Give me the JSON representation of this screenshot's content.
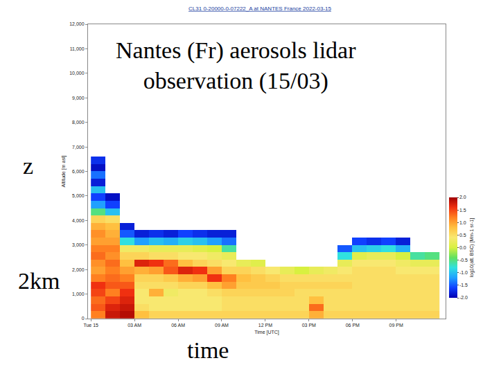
{
  "chart_data": {
    "type": "heatmap",
    "title": "CL31 0-20000-0-07222_A at NANTES France 2022-03-15",
    "annotations": [
      "Nantes (Fr) aerosols lidar observation (15/03)",
      "z",
      "2km",
      "time"
    ],
    "x_label": "Time [UTC]",
    "y_label": "Altitude [m asl]",
    "xlim": [
      -0.2,
      24.4
    ],
    "xticks": [
      {
        "value": 0,
        "label": "Tue 15"
      },
      {
        "value": 3,
        "label": "03 AM"
      },
      {
        "value": 6,
        "label": "06 AM"
      },
      {
        "value": 9,
        "label": "09 AM"
      },
      {
        "value": 12,
        "label": "12 PM"
      },
      {
        "value": 15,
        "label": "03 PM"
      },
      {
        "value": 18,
        "label": "06 PM"
      },
      {
        "value": 21,
        "label": "09 PM"
      }
    ],
    "ylim": [
      0,
      12000
    ],
    "yticks": [
      0,
      {
        "value": 1000,
        "label": "1,000"
      },
      {
        "value": 2000,
        "label": "2,000"
      },
      {
        "value": 3000,
        "label": "3,000"
      },
      {
        "value": 4000,
        "label": "4,000"
      },
      {
        "value": 5000,
        "label": "5,000"
      },
      {
        "value": 6000,
        "label": "6,000"
      },
      {
        "value": 7000,
        "label": "7,000"
      },
      {
        "value": 8000,
        "label": "8,000"
      },
      {
        "value": 9000,
        "label": "9,000"
      },
      {
        "value": 10000,
        "label": "10,000"
      },
      {
        "value": 11000,
        "label": "11,000"
      },
      {
        "value": 12000,
        "label": "12,000"
      }
    ],
    "grid": false,
    "x": [
      0.5,
      1.5,
      2.5,
      3.5,
      4.5,
      5.5,
      6.5,
      7.5,
      8.5,
      9.5,
      10.5,
      11.5,
      12.5,
      13.5,
      14.5,
      15.5,
      16.5,
      17.5,
      18.5,
      19.5,
      20.5,
      21.5,
      22.5,
      23.5
    ],
    "y": [
      150,
      450,
      750,
      1050,
      1350,
      1650,
      1950,
      2250,
      2550,
      2850,
      3150,
      3450,
      3750,
      4050,
      4350,
      4650,
      4950,
      5250,
      5550,
      5850,
      6150,
      6450,
      6750,
      7050,
      7350,
      7650
    ],
    "profiles": [
      [
        1.2,
        1.4,
        1.3,
        1.5,
        1.6,
        1.2,
        1.0,
        1.1,
        1.3,
        1.2,
        1.0,
        1.1,
        0.9,
        0.6,
        -0.5,
        -1.2,
        -1.6,
        -1.0,
        -1.8,
        -1.4,
        -1.9,
        -1.7,
        null,
        null,
        null,
        null
      ],
      [
        1.8,
        1.7,
        1.5,
        1.2,
        1.4,
        1.3,
        1.2,
        1.3,
        1.1,
        1.2,
        1.0,
        0.9,
        0.8,
        0.5,
        -1.0,
        -1.6,
        -1.9,
        null,
        null,
        null,
        null,
        null,
        null,
        null,
        null,
        null
      ],
      [
        1.9,
        1.8,
        1.7,
        1.6,
        1.4,
        1.2,
        1.0,
        0.8,
        0.6,
        0.3,
        -0.8,
        -1.5,
        -1.8,
        null,
        null,
        null,
        null,
        null,
        null,
        null,
        null,
        null,
        null,
        null,
        null,
        null
      ],
      [
        0.8,
        0.5,
        0.4,
        0.4,
        0.5,
        0.6,
        0.9,
        1.7,
        0.6,
        0.3,
        -1.2,
        -1.8,
        null,
        null,
        null,
        null,
        null,
        null,
        null,
        null,
        null,
        null,
        null,
        null,
        null,
        null
      ],
      [
        0.6,
        0.4,
        0.4,
        0.9,
        0.5,
        0.6,
        1.0,
        1.6,
        0.5,
        0.2,
        -1.0,
        -1.7,
        null,
        null,
        null,
        null,
        null,
        null,
        null,
        null,
        null,
        null,
        null,
        null,
        null,
        null
      ],
      [
        0.6,
        0.4,
        0.4,
        0.3,
        0.5,
        0.7,
        1.4,
        1.3,
        0.5,
        0.2,
        -1.1,
        -1.8,
        null,
        null,
        null,
        null,
        null,
        null,
        null,
        null,
        null,
        null,
        null,
        null,
        null,
        null
      ],
      [
        0.6,
        0.4,
        0.4,
        0.4,
        0.6,
        0.9,
        1.7,
        0.8,
        0.4,
        0.2,
        -0.9,
        -1.6,
        null,
        null,
        null,
        null,
        null,
        null,
        null,
        null,
        null,
        null,
        null,
        null,
        null,
        null
      ],
      [
        0.6,
        0.4,
        0.4,
        0.4,
        0.6,
        1.0,
        1.6,
        0.6,
        0.4,
        0.1,
        -1.0,
        -1.7,
        null,
        null,
        null,
        null,
        null,
        null,
        null,
        null,
        null,
        null,
        null,
        null,
        null,
        null
      ],
      [
        0.6,
        0.4,
        0.4,
        0.5,
        0.8,
        1.6,
        1.0,
        0.5,
        0.3,
        0.0,
        -1.2,
        -1.8,
        null,
        null,
        null,
        null,
        null,
        null,
        null,
        null,
        null,
        null,
        null,
        null,
        null,
        null
      ],
      [
        0.6,
        0.5,
        0.5,
        0.6,
        1.0,
        1.2,
        0.6,
        0.4,
        0.2,
        -0.6,
        -1.4,
        -1.8,
        null,
        null,
        null,
        null,
        null,
        null,
        null,
        null,
        null,
        null,
        null,
        null,
        null,
        null
      ],
      [
        0.6,
        0.5,
        0.5,
        0.6,
        0.7,
        0.8,
        0.6,
        0.2,
        null,
        null,
        null,
        null,
        null,
        null,
        null,
        null,
        null,
        null,
        null,
        null,
        null,
        null,
        null,
        null,
        null,
        null
      ],
      [
        0.6,
        0.5,
        0.5,
        0.6,
        0.7,
        0.7,
        0.5,
        0.1,
        null,
        null,
        null,
        null,
        null,
        null,
        null,
        null,
        null,
        null,
        null,
        null,
        null,
        null,
        null,
        null,
        null,
        null
      ],
      [
        0.6,
        0.5,
        0.5,
        0.6,
        0.7,
        0.6,
        0.4,
        null,
        null,
        null,
        null,
        null,
        null,
        null,
        null,
        null,
        null,
        null,
        null,
        null,
        null,
        null,
        null,
        null,
        null,
        null
      ],
      [
        0.6,
        0.5,
        0.5,
        0.6,
        0.6,
        0.5,
        0.2,
        null,
        null,
        null,
        null,
        null,
        null,
        null,
        null,
        null,
        null,
        null,
        null,
        null,
        null,
        null,
        null,
        null,
        null,
        null
      ],
      [
        0.6,
        0.5,
        0.5,
        0.5,
        0.6,
        0.5,
        0.0,
        null,
        null,
        null,
        null,
        null,
        null,
        null,
        null,
        null,
        null,
        null,
        null,
        null,
        null,
        null,
        null,
        null,
        null,
        null
      ],
      [
        0.9,
        1.3,
        0.8,
        0.5,
        0.6,
        0.5,
        0.2,
        null,
        null,
        null,
        null,
        null,
        null,
        null,
        null,
        null,
        null,
        null,
        null,
        null,
        null,
        null,
        null,
        null,
        null,
        null
      ],
      [
        0.6,
        0.5,
        0.5,
        0.5,
        0.6,
        0.5,
        0.3,
        null,
        null,
        null,
        null,
        null,
        null,
        null,
        null,
        null,
        null,
        null,
        null,
        null,
        null,
        null,
        null,
        null,
        null,
        null
      ],
      [
        0.6,
        0.5,
        0.5,
        0.5,
        0.6,
        0.5,
        0.4,
        0.2,
        -0.8,
        -1.5,
        null,
        null,
        null,
        null,
        null,
        null,
        null,
        null,
        null,
        null,
        null,
        null,
        null,
        null,
        null,
        null
      ],
      [
        0.6,
        0.5,
        0.5,
        0.5,
        0.5,
        0.5,
        0.5,
        0.4,
        0.1,
        -1.0,
        -1.6,
        null,
        null,
        null,
        null,
        null,
        null,
        null,
        null,
        null,
        null,
        null,
        null,
        null,
        null,
        null
      ],
      [
        0.6,
        0.5,
        0.5,
        0.5,
        0.5,
        0.5,
        0.5,
        0.4,
        0.2,
        -0.9,
        -1.7,
        null,
        null,
        null,
        null,
        null,
        null,
        null,
        null,
        null,
        null,
        null,
        null,
        null,
        null,
        null
      ],
      [
        0.6,
        0.5,
        0.5,
        0.5,
        0.5,
        0.5,
        0.5,
        0.4,
        0.2,
        -0.8,
        -1.6,
        null,
        null,
        null,
        null,
        null,
        null,
        null,
        null,
        null,
        null,
        null,
        null,
        null,
        null,
        null
      ],
      [
        0.6,
        0.5,
        0.5,
        0.5,
        0.5,
        0.5,
        0.4,
        0.3,
        0.0,
        -1.1,
        -1.8,
        null,
        null,
        null,
        null,
        null,
        null,
        null,
        null,
        null,
        null,
        null,
        null,
        null,
        null,
        null
      ],
      [
        0.6,
        0.5,
        0.5,
        0.5,
        0.5,
        0.5,
        0.4,
        0.2,
        -0.6,
        null,
        null,
        null,
        null,
        null,
        null,
        null,
        null,
        null,
        null,
        null,
        null,
        null,
        null,
        null,
        null,
        null
      ],
      [
        0.6,
        0.5,
        0.5,
        0.5,
        0.5,
        0.5,
        0.4,
        0.2,
        -0.5,
        null,
        null,
        null,
        null,
        null,
        null,
        null,
        null,
        null,
        null,
        null,
        null,
        null,
        null,
        null,
        null,
        null
      ]
    ],
    "colorbar": {
      "title": "log10(att. BSC) [Mm-1 sr-1]",
      "zlim": [
        -2,
        2
      ],
      "ticks": [
        {
          "value": -2,
          "label": "-2.0"
        },
        {
          "value": -1.5,
          "label": "-1.5"
        },
        {
          "value": -1,
          "label": "-1.0"
        },
        {
          "value": -0.5,
          "label": "-0.5"
        },
        {
          "value": 0,
          "label": "0.0"
        },
        {
          "value": 0.5,
          "label": "0.5"
        },
        {
          "value": 1,
          "label": "1.0"
        },
        {
          "value": 1.5,
          "label": "1.5"
        },
        {
          "value": 2,
          "label": "2.0"
        }
      ]
    }
  }
}
